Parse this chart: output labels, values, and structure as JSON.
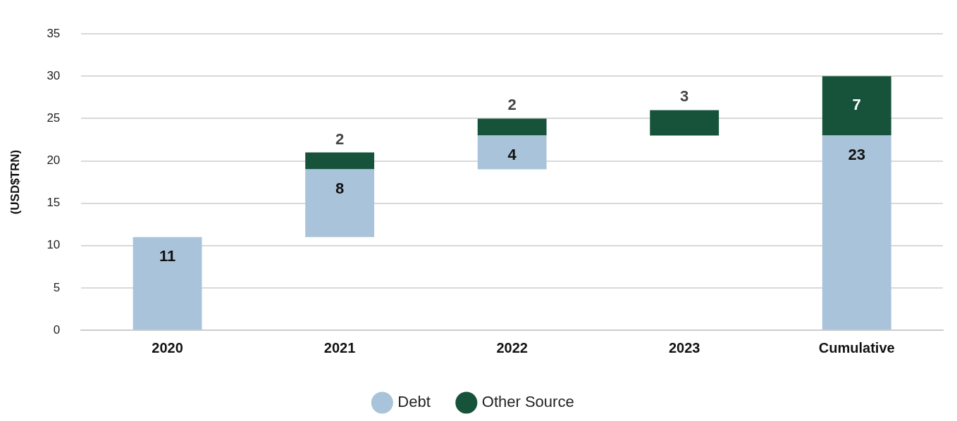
{
  "chart_data": {
    "type": "bar",
    "ylabel": "(USD$TRN)",
    "categories": [
      "2020",
      "2021",
      "2022",
      "2023",
      "Cumulative"
    ],
    "series": [
      {
        "name": "Debt",
        "color": "#a9c4da",
        "values": [
          11,
          8,
          4,
          null,
          23
        ],
        "base": [
          0,
          11,
          19,
          null,
          0
        ]
      },
      {
        "name": "Other Source",
        "color": "#16533a",
        "values": [
          null,
          2,
          2,
          3,
          7
        ],
        "base": [
          null,
          19,
          23,
          23,
          23
        ]
      }
    ],
    "ylim": [
      0,
      35
    ],
    "yticks": [
      0,
      5,
      10,
      15,
      20,
      25,
      30,
      35
    ],
    "grid": "y",
    "legend": "bottom",
    "data_labels": true
  }
}
